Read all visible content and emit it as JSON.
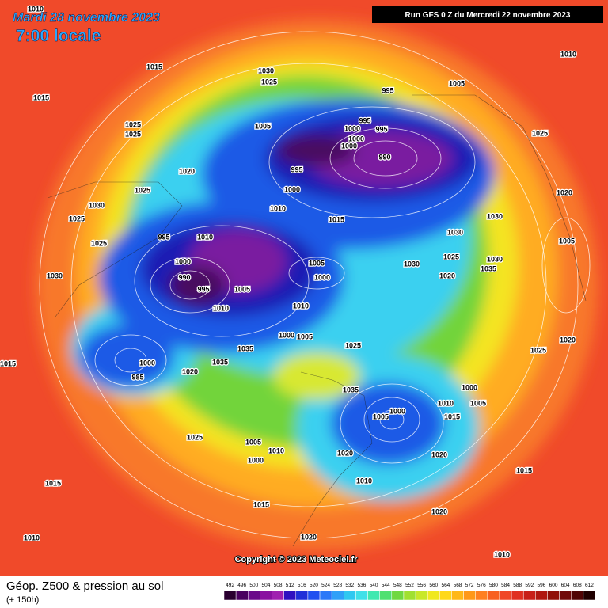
{
  "header": {
    "title": "Mardi 28 novembre 2023",
    "subtitle": "7:00 locale",
    "run": "Run GFS 0 Z du Mercredi 22 novembre 2023"
  },
  "isobar_labels": [
    1010,
    1015,
    1015,
    1030,
    1025,
    995,
    1005,
    1010,
    1025,
    1025,
    1005,
    995,
    995,
    1000,
    1000,
    1000,
    990,
    1025,
    1020,
    995,
    1000,
    1025,
    1030,
    1010,
    1015,
    1030,
    1030,
    1020,
    1025,
    995,
    1010,
    1025,
    1000,
    1005,
    1000,
    1030,
    1025,
    1030,
    1020,
    1035,
    1005,
    1030,
    990,
    995,
    1005,
    1010,
    1010,
    1000,
    1005,
    1035,
    1025,
    1020,
    1025,
    1015,
    1035,
    1000,
    985,
    1020,
    1000,
    1035,
    1000,
    1005,
    1010,
    1015,
    1005,
    1025,
    1005,
    1000,
    1010,
    1020,
    1020,
    1015,
    1015,
    1010,
    1015,
    1020,
    1020,
    1010,
    1010
  ],
  "copyright": "Copyright © 2023 Meteociel.fr",
  "legend": {
    "title": "Géop. Z500 & pression au sol",
    "lead": "(+ 150h)",
    "values": [
      492,
      496,
      500,
      504,
      508,
      512,
      516,
      520,
      524,
      528,
      532,
      536,
      540,
      544,
      548,
      552,
      556,
      560,
      564,
      568,
      572,
      576,
      580,
      584,
      588,
      592,
      596,
      600,
      604,
      608,
      612
    ],
    "colors": [
      "#2a0030",
      "#4a0060",
      "#6a0a8a",
      "#8a10a0",
      "#a020b0",
      "#3010c0",
      "#2030d8",
      "#2050f0",
      "#2a78f8",
      "#30a0f8",
      "#30c8f0",
      "#40e0e8",
      "#40e8b0",
      "#50e070",
      "#70d840",
      "#a0e030",
      "#c8e828",
      "#f0e820",
      "#ffd818",
      "#ffb818",
      "#ff9818",
      "#ff8020",
      "#f86020",
      "#f04828",
      "#e03020",
      "#c82018",
      "#b01810",
      "#901008",
      "#700808",
      "#500404",
      "#200000"
    ]
  }
}
